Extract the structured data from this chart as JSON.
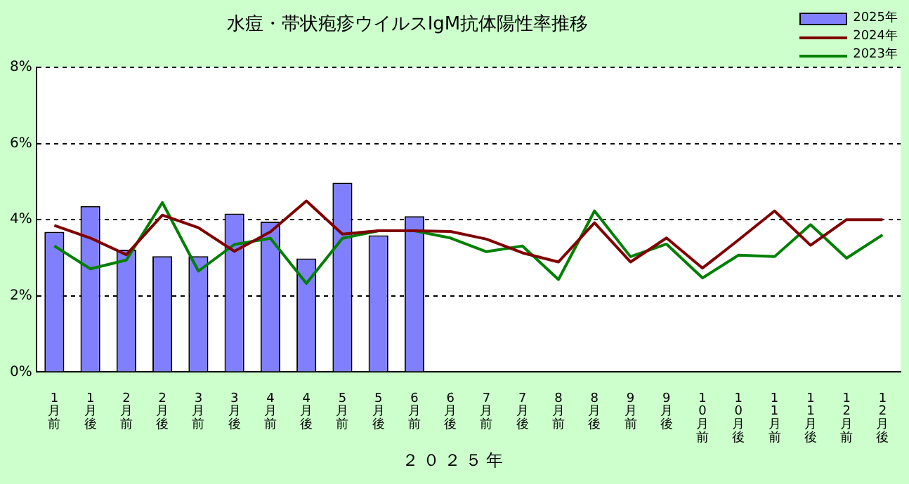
{
  "chart_data": {
    "type": "bar",
    "title": "水痘・帯状疱疹ウイルスIgM抗体陽性率推移",
    "xlabel": "２０２５年",
    "categories": [
      "1月前",
      "1月後",
      "2月前",
      "2月後",
      "3月前",
      "3月後",
      "4月前",
      "4月後",
      "5月前",
      "5月後",
      "6月前",
      "6月後",
      "7月前",
      "7月後",
      "8月前",
      "8月後",
      "9月前",
      "9月後",
      "10月前",
      "10月後",
      "11月前",
      "11月後",
      "12月前",
      "12月後"
    ],
    "series": [
      {
        "name": "2025年",
        "color": "#8080ff",
        "values": [
          3.68,
          4.36,
          3.21,
          3.04,
          3.04,
          4.16,
          3.95,
          2.98,
          4.97,
          3.59,
          4.09,
          null,
          null,
          null,
          null,
          null,
          null,
          null,
          null,
          null,
          null,
          null,
          null,
          null
        ]
      },
      {
        "name": "2024年",
        "type": "line",
        "color": "#800000",
        "values": [
          3.85,
          3.52,
          3.08,
          4.12,
          3.79,
          3.17,
          3.68,
          4.49,
          3.62,
          3.71,
          3.71,
          3.69,
          3.49,
          3.13,
          2.89,
          3.92,
          2.89,
          3.52,
          2.73,
          3.47,
          4.23,
          3.33,
          4.0,
          4.0
        ]
      },
      {
        "name": "2023年",
        "type": "line",
        "color": "#008000",
        "values": [
          3.31,
          2.71,
          2.94,
          4.45,
          2.65,
          3.35,
          3.51,
          2.33,
          3.51,
          3.71,
          3.71,
          3.52,
          3.16,
          3.31,
          2.43,
          4.23,
          3.03,
          3.36,
          2.47,
          3.07,
          3.03,
          3.87,
          2.99,
          3.6
        ]
      }
    ],
    "ylim": [
      0,
      8
    ],
    "yticks": [
      {
        "value": 0,
        "label": "0%"
      },
      {
        "value": 2,
        "label": "2%"
      },
      {
        "value": 4,
        "label": "4%"
      },
      {
        "value": 6,
        "label": "6%"
      },
      {
        "value": 8,
        "label": "8%"
      }
    ],
    "grid": "y",
    "legend": "top right",
    "marker": "none",
    "line_style": "solid"
  }
}
